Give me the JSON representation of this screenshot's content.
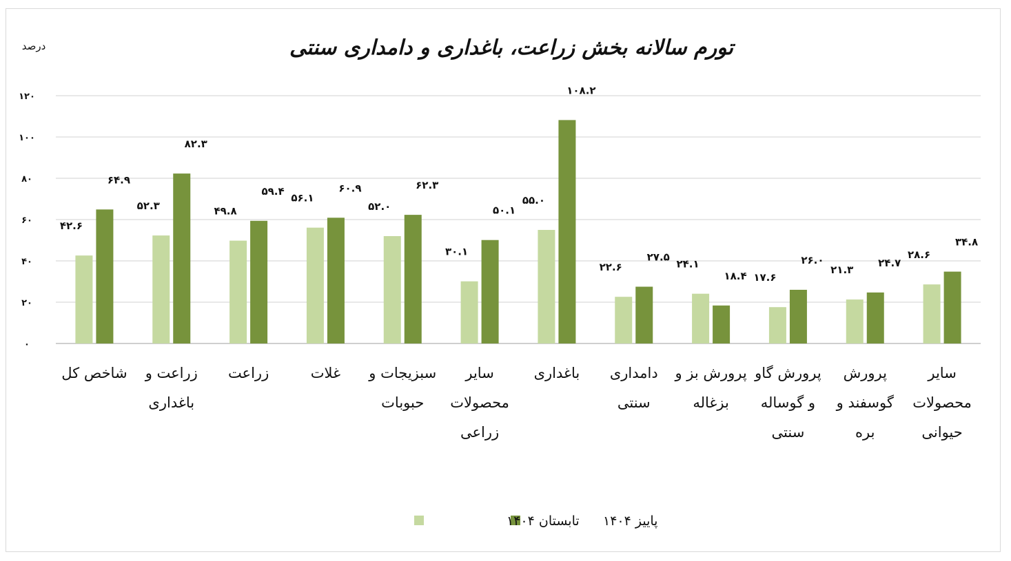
{
  "chart_data": {
    "type": "bar",
    "title": "تورم سالانه بخش زراعت، باغداری و دامداری سنتی",
    "ylabel": "درصد",
    "xlabel": "",
    "ylim": [
      0,
      120
    ],
    "yticks": [
      0,
      20,
      40,
      60,
      80,
      100,
      120
    ],
    "ytick_labels": [
      "۰",
      "۲۰",
      "۴۰",
      "۶۰",
      "۸۰",
      "۱۰۰",
      "۱۲۰"
    ],
    "grid": true,
    "legend_position": "bottom",
    "categories": [
      [
        "شاخص کل"
      ],
      [
        "زراعت و",
        "باغداری"
      ],
      [
        "زراعت"
      ],
      [
        "غلات"
      ],
      [
        "سبزیجات و",
        "حبوبات"
      ],
      [
        "سایر",
        "محصولات",
        "زراعی"
      ],
      [
        "باغداری"
      ],
      [
        "دامداری",
        "سنتی"
      ],
      [
        "پرورش بز و",
        "بزغاله"
      ],
      [
        "پرورش گاو",
        "و گوساله",
        "سنتی"
      ],
      [
        "پرورش",
        "گوسفند و",
        "بره"
      ],
      [
        "سایر",
        "محصولات",
        "حیوانی"
      ]
    ],
    "series": [
      {
        "name": "تابستان ۱۴۰۴",
        "color": "#c5d9a0",
        "values": [
          42.6,
          52.3,
          49.8,
          56.1,
          52.0,
          30.1,
          55.0,
          22.6,
          24.1,
          17.6,
          21.3,
          28.6
        ],
        "labels": [
          "۴۲.۶",
          "۵۲.۳",
          "۴۹.۸",
          "۵۶.۱",
          "۵۲.۰",
          "۳۰.۱",
          "۵۵.۰",
          "۲۲.۶",
          "۲۴.۱",
          "۱۷.۶",
          "۲۱.۳",
          "۲۸.۶"
        ]
      },
      {
        "name": "پاییز ۱۴۰۴",
        "color": "#77933c",
        "values": [
          64.9,
          82.3,
          59.4,
          60.9,
          62.3,
          50.1,
          108.2,
          27.5,
          18.4,
          26.0,
          24.7,
          34.8
        ],
        "labels": [
          "۶۴.۹",
          "۸۲.۳",
          "۵۹.۴",
          "۶۰.۹",
          "۶۲.۳",
          "۵۰.۱",
          "۱۰۸.۲",
          "۲۷.۵",
          "۱۸.۴",
          "۲۶.۰",
          "۲۴.۷",
          "۳۴.۸"
        ]
      }
    ]
  }
}
